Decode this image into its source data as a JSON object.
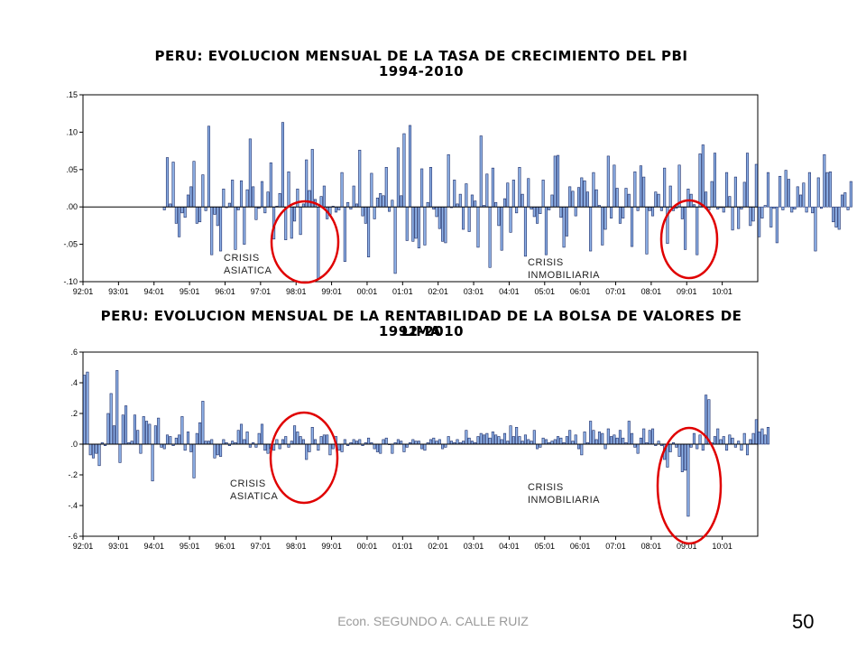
{
  "chart_data": [
    {
      "type": "bar",
      "title": "PERU: EVOLUCION MENSUAL DE LA TASA DE CRECIMIENTO DEL PBI",
      "subtitle": "1994-2010",
      "xlabel": "",
      "ylabel": "",
      "ylim": [
        -0.1,
        0.15
      ],
      "yticks": [
        ".15",
        ".10",
        ".05",
        ".00",
        "-.05",
        "-.10"
      ],
      "xticks": [
        "92:01",
        "93:01",
        "94:01",
        "95:01",
        "96:01",
        "97:01",
        "98:01",
        "99:01",
        "00:01",
        "01:01",
        "02:01",
        "03:01",
        "04:01",
        "05:01",
        "06:01",
        "07:01",
        "08:01",
        "09:01",
        "10:01"
      ],
      "x_start": "1992-01",
      "bar_color": "#8fb2e8",
      "annotations": [
        "CRISIS ASIATICA",
        "CRISIS INMOBILIARIA"
      ],
      "highlight_color": "#e00000",
      "values": [
        -0.004,
        0.066,
        0.004,
        0.06,
        -0.022,
        -0.04,
        -0.008,
        -0.014,
        0.016,
        0.027,
        0.061,
        -0.022,
        -0.02,
        0.043,
        -0.005,
        0.108,
        -0.064,
        -0.01,
        -0.025,
        -0.059,
        0.024,
        -0.001,
        0.005,
        0.036,
        -0.057,
        -0.004,
        0.035,
        -0.05,
        0.023,
        0.091,
        0.027,
        -0.017,
        -0.002,
        0.034,
        -0.008,
        0.02,
        0.059,
        -0.043,
        0.001,
        0.018,
        0.113,
        -0.044,
        0.047,
        -0.042,
        -0.019,
        0.024,
        -0.037,
        0.004,
        0.063,
        0.022,
        0.077,
        0.01,
        -0.096,
        0.014,
        0.028,
        -0.016,
        -0.01,
        0.001,
        -0.007,
        -0.004,
        0.046,
        -0.073,
        0.006,
        -0.003,
        0.028,
        0.004,
        0.076,
        -0.012,
        -0.022,
        -0.067,
        0.045,
        -0.016,
        0.012,
        0.018,
        0.015,
        0.053,
        -0.006,
        0.009,
        -0.089,
        0.079,
        0.015,
        0.098,
        -0.045,
        0.109,
        -0.046,
        -0.042,
        -0.055,
        0.051,
        -0.051,
        0.006,
        0.053,
        -0.003,
        -0.013,
        -0.029,
        -0.046,
        -0.048,
        0.07,
        -0.001,
        0.036,
        0.004,
        0.017,
        -0.03,
        0.031,
        -0.033,
        0.016,
        0.008,
        -0.054,
        0.095,
        0.002,
        0.044,
        -0.081,
        0.052,
        0.006,
        -0.025,
        -0.058,
        0.011,
        0.032,
        -0.034,
        0.036,
        -0.008,
        0.053,
        0.017,
        -0.066,
        0.038,
        -0.003,
        -0.013,
        -0.022,
        -0.009,
        0.036,
        -0.064,
        -0.004,
        0.016,
        0.068,
        0.069,
        -0.014,
        -0.054,
        -0.039,
        0.027,
        0.021,
        -0.012,
        0.026,
        0.039,
        0.035,
        0.02,
        -0.059,
        0.046,
        0.023,
        0.002,
        -0.051,
        -0.03,
        0.068,
        -0.015,
        0.056,
        0.025,
        -0.022,
        -0.015,
        0.025,
        0.017,
        -0.053,
        0.047,
        -0.005,
        0.055,
        0.04,
        -0.063,
        -0.005,
        -0.012,
        0.02,
        0.017,
        -0.005,
        0.052,
        -0.049,
        0.028,
        -0.005,
        -0.002,
        0.056,
        -0.016,
        -0.057,
        0.024,
        0.017,
        0.003,
        -0.064,
        0.071,
        0.083,
        0.02,
        -0.004,
        0.034,
        0.072,
        -0.003,
        -0.001,
        -0.007,
        0.046,
        0.014,
        -0.031,
        0.04,
        -0.029,
        -0.003,
        0.033,
        0.072,
        -0.025,
        -0.019,
        0.057,
        -0.04,
        -0.015,
        0.002,
        0.046,
        -0.027,
        -0.002,
        -0.048,
        0.041,
        -0.004,
        0.049,
        0.037,
        -0.007,
        -0.003,
        0.027,
        0.016,
        0.032,
        -0.007,
        0.046,
        -0.008,
        -0.059,
        0.039,
        -0.002,
        0.07,
        0.046,
        0.047,
        -0.02,
        -0.027,
        -0.03,
        0.016,
        0.019,
        -0.004,
        0.034
      ]
    },
    {
      "type": "bar",
      "title": "PERU: EVOLUCION MENSUAL DE LA RENTABILIDAD DE LA BOLSA DE VALORES DE LIMA",
      "subtitle": "1992-2010",
      "xlabel": "",
      "ylabel": "",
      "ylim": [
        -0.6,
        0.6
      ],
      "yticks": [
        ".6",
        ".4",
        ".2",
        ".0",
        "-.2",
        "-.4",
        "-.6"
      ],
      "xticks": [
        "92:01",
        "93:01",
        "94:01",
        "95:01",
        "96:01",
        "97:01",
        "98:01",
        "99:01",
        "00:01",
        "01:01",
        "02:01",
        "03:01",
        "04:01",
        "05:01",
        "06:01",
        "07:01",
        "08:01",
        "09:01",
        "10:01"
      ],
      "x_start": "1992-01",
      "bar_color": "#8fb2e8",
      "annotations": [
        "CRISIS ASIATICA",
        "CRISIS INMOBILIARIA"
      ],
      "highlight_color": "#e00000",
      "values": [
        0.45,
        0.47,
        -0.07,
        -0.09,
        -0.06,
        -0.14,
        0.01,
        -0.01,
        0.2,
        0.33,
        0.12,
        0.48,
        -0.12,
        0.19,
        0.25,
        0.01,
        0.02,
        0.19,
        0.09,
        -0.06,
        0.18,
        0.15,
        0.13,
        -0.24,
        0.12,
        0.17,
        -0.02,
        -0.03,
        0.06,
        0.05,
        -0.01,
        0.04,
        0.06,
        0.18,
        -0.04,
        0.08,
        -0.05,
        -0.22,
        0.07,
        0.14,
        0.28,
        0.02,
        0.02,
        0.03,
        -0.09,
        -0.07,
        -0.08,
        0.03,
        0.01,
        -0.01,
        0.02,
        0.01,
        0.09,
        0.13,
        0.03,
        0.08,
        -0.02,
        0.01,
        -0.02,
        0.07,
        0.13,
        -0.04,
        -0.06,
        -0.03,
        -0.04,
        0.03,
        -0.03,
        0.03,
        0.05,
        -0.02,
        0.02,
        0.12,
        0.08,
        0.05,
        0.03,
        -0.1,
        -0.05,
        0.11,
        0.03,
        -0.04,
        0.05,
        0.06,
        0.06,
        -0.07,
        -0.03,
        0.05,
        -0.04,
        -0.05,
        0.03,
        -0.01,
        0.01,
        0.03,
        0.02,
        0.03,
        -0.01,
        0.01,
        0.04,
        0.01,
        -0.03,
        -0.05,
        -0.06,
        0.03,
        0.04,
        0.0,
        -0.06,
        0.01,
        0.03,
        0.02,
        -0.05,
        -0.02,
        0.01,
        0.03,
        0.02,
        0.02,
        -0.03,
        -0.04,
        0.01,
        0.03,
        0.04,
        0.02,
        0.03,
        -0.03,
        -0.02,
        0.05,
        0.02,
        0.01,
        0.03,
        0.01,
        0.02,
        0.09,
        0.04,
        0.02,
        0.01,
        0.05,
        0.07,
        0.06,
        0.07,
        0.04,
        0.08,
        0.06,
        0.05,
        0.03,
        0.07,
        0.02,
        0.12,
        0.05,
        0.11,
        0.05,
        0.02,
        0.06,
        0.03,
        0.02,
        0.09,
        -0.03,
        -0.02,
        0.04,
        0.03,
        0.01,
        0.02,
        0.03,
        0.05,
        0.04,
        0.01,
        0.05,
        0.09,
        0.02,
        0.06,
        -0.03,
        -0.07,
        0.08,
        0.01,
        0.15,
        0.09,
        0.03,
        0.08,
        0.07,
        -0.03,
        0.1,
        0.05,
        0.06,
        0.04,
        0.09,
        0.04,
        0.01,
        0.15,
        0.07,
        -0.02,
        -0.06,
        0.04,
        0.1,
        0.01,
        0.09,
        0.1,
        -0.01,
        0.02,
        -0.01,
        -0.1,
        -0.15,
        -0.05,
        0.01,
        -0.02,
        -0.08,
        -0.18,
        -0.17,
        -0.47,
        -0.02,
        0.07,
        -0.03,
        0.06,
        -0.04,
        0.32,
        0.29,
        0.01,
        0.05,
        0.1,
        0.03,
        0.05,
        -0.04,
        0.06,
        0.04,
        -0.02,
        0.02,
        -0.04,
        0.07,
        -0.07,
        0.03,
        0.07,
        0.16,
        0.08,
        0.1,
        0.06,
        0.11
      ]
    }
  ],
  "footer": {
    "author": "Econ. SEGUNDO A. CALLE RUIZ",
    "page_number": "50"
  }
}
